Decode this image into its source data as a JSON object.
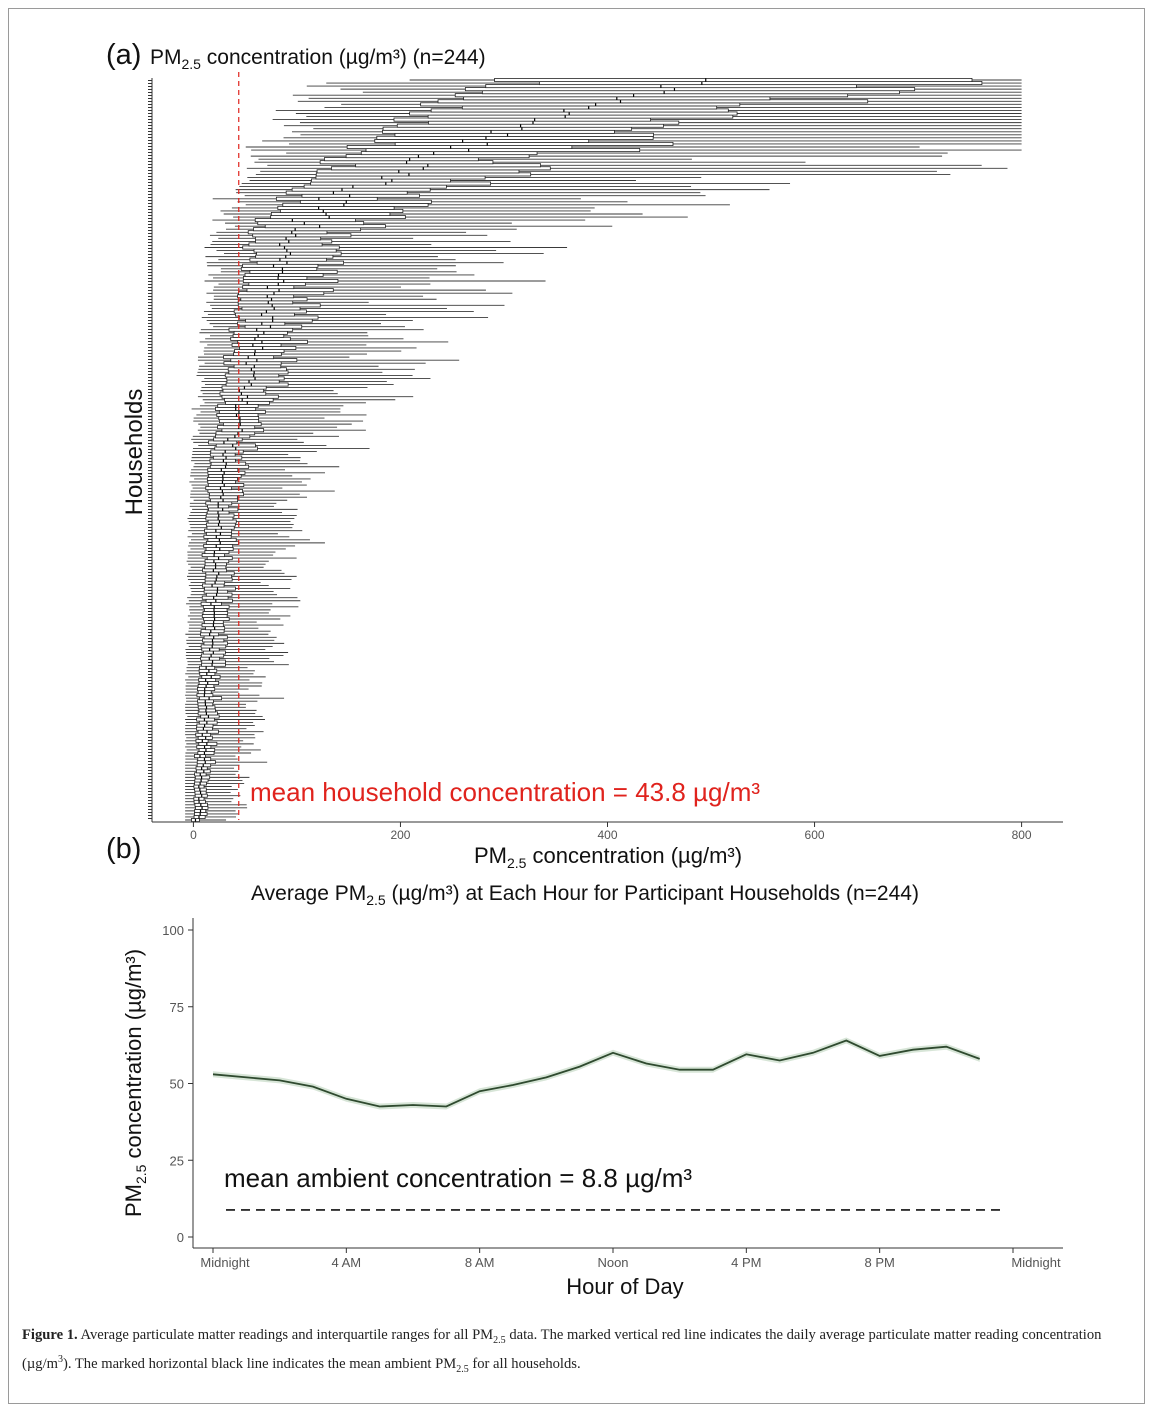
{
  "panel_a": {
    "letter": "(a)",
    "title_pre": "PM",
    "title_sub": "2.5",
    "title_post": " concentration (µg/m³) (n=244)",
    "ylabel": "Households",
    "xlabel_pre": "PM",
    "xlabel_sub": "2.5",
    "xlabel_post": " concentration (µg/m³)",
    "annotation": "mean household concentration = 43.8 µg/m³",
    "mean_color": "#e0231d"
  },
  "panel_b": {
    "letter": "(b)",
    "title_pre": "Average PM",
    "title_sub": "2.5",
    "title_post": " (µg/m³) at Each Hour for Participant Households (n=244)",
    "ylabel_pre": "PM",
    "ylabel_sub": "2.5",
    "ylabel_post": " concentration (µg/m³)",
    "xlabel": "Hour of Day",
    "annotation": "mean ambient concentration = 8.8 µg/m³",
    "line_color": "#2f4a2f",
    "ribbon_color": "#c9dcc9"
  },
  "caption": {
    "label": "Figure 1.",
    "text_1": " Average particulate matter readings and interquartile ranges for all PM",
    "sub_1": "2.5",
    "text_2": " data. The marked vertical red line indicates the daily average particulate matter reading concentration (µg/m",
    "sup": "3",
    "text_3": "). The marked horizontal black line indicates the mean ambient PM",
    "sub_2": "2.5",
    "text_4": " for all households."
  },
  "chart_data": [
    {
      "type": "boxplot",
      "panel": "a",
      "n_households": 244,
      "xlim": [
        -40,
        840
      ],
      "x_ticks": [
        0,
        200,
        400,
        600,
        800
      ],
      "mean_line": 43.8,
      "grid": false,
      "ordering": "households sorted by median concentration, lowest at bottom"
    },
    {
      "type": "line",
      "panel": "b",
      "x": [
        0,
        2,
        3,
        4,
        5,
        6,
        7,
        8,
        9,
        10,
        11,
        12,
        13,
        14,
        15,
        16,
        17,
        18,
        19,
        20,
        21,
        22,
        23
      ],
      "values": [
        53,
        51,
        49,
        45,
        42.5,
        43,
        42.5,
        47.5,
        49.5,
        52,
        55.5,
        60,
        56.5,
        54.5,
        54.5,
        59.5,
        57.5,
        60,
        64,
        59,
        61,
        62,
        58
      ],
      "x_tick_values": [
        0,
        4,
        8,
        12,
        16,
        20,
        24
      ],
      "x_tick_labels": [
        "Midnight",
        "4 AM",
        "8 AM",
        "Noon",
        "4 PM",
        "8 PM",
        "Midnight"
      ],
      "y_ticks": [
        0,
        25,
        50,
        75,
        100
      ],
      "ylim": [
        0,
        100
      ],
      "reference_line": 8.8,
      "grid": false
    }
  ]
}
